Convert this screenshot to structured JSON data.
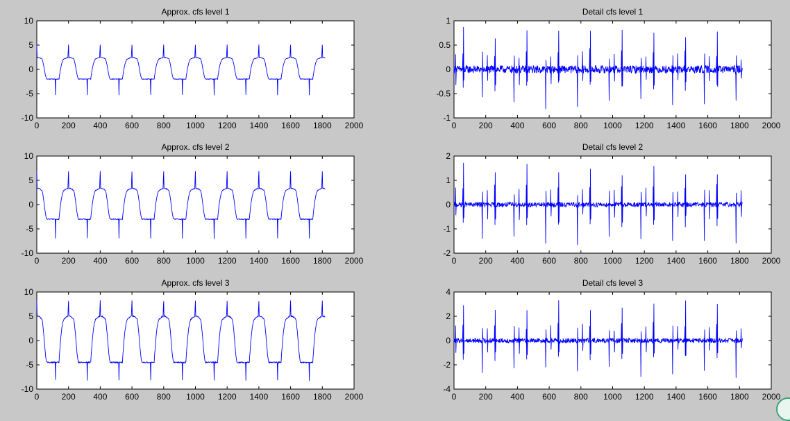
{
  "figure": {
    "background": "#c8c8c8",
    "line_color": "#0000ff"
  },
  "chart_data": [
    {
      "id": "approx-level-1",
      "type": "line",
      "title": "Approx. cfs level 1",
      "xlim": [
        0,
        2000
      ],
      "ylim": [
        -10,
        10
      ],
      "xticks": [
        0,
        200,
        400,
        600,
        800,
        1000,
        1200,
        1400,
        1600,
        1800,
        2000
      ],
      "yticks": [
        -10,
        -5,
        0,
        5,
        10
      ],
      "series": [
        {
          "kind": "approx",
          "samples": 1820,
          "period_samples": 200,
          "peak": 5.2,
          "trough": -5.3,
          "baseline": -2.0,
          "plateau": 2.2
        }
      ]
    },
    {
      "id": "detail-level-1",
      "type": "line",
      "title": "Detail cfs level 1",
      "xlim": [
        0,
        2000
      ],
      "ylim": [
        -1,
        1
      ],
      "xticks": [
        0,
        200,
        400,
        600,
        800,
        1000,
        1200,
        1400,
        1600,
        1800,
        2000
      ],
      "yticks": [
        -1,
        -0.5,
        0,
        0.5,
        1
      ],
      "series": [
        {
          "kind": "detail",
          "samples": 1820,
          "spike_positive": 0.85,
          "spike_negative": -0.8,
          "noise": 0.08
        }
      ]
    },
    {
      "id": "approx-level-2",
      "type": "line",
      "title": "Approx. cfs level 2",
      "xlim": [
        0,
        2000
      ],
      "ylim": [
        -10,
        10
      ],
      "xticks": [
        0,
        200,
        400,
        600,
        800,
        1000,
        1200,
        1400,
        1600,
        1800,
        2000
      ],
      "yticks": [
        -10,
        -5,
        0,
        5,
        10
      ],
      "series": [
        {
          "kind": "approx",
          "samples": 1820,
          "period_samples": 200,
          "peak": 7.0,
          "trough": -7.0,
          "baseline": -3.0,
          "plateau": 3.0
        }
      ]
    },
    {
      "id": "detail-level-2",
      "type": "line",
      "title": "Detail cfs level 2",
      "xlim": [
        0,
        2000
      ],
      "ylim": [
        -2,
        2
      ],
      "xticks": [
        0,
        200,
        400,
        600,
        800,
        1000,
        1200,
        1400,
        1600,
        1800,
        2000
      ],
      "yticks": [
        -2,
        -1,
        0,
        1,
        2
      ],
      "series": [
        {
          "kind": "detail",
          "samples": 1820,
          "spike_positive": 1.7,
          "spike_negative": -1.7,
          "noise": 0.1
        }
      ]
    },
    {
      "id": "approx-level-3",
      "type": "line",
      "title": "Approx. cfs level 3",
      "xlim": [
        0,
        2000
      ],
      "ylim": [
        -10,
        10
      ],
      "xticks": [
        0,
        200,
        400,
        600,
        800,
        1000,
        1200,
        1400,
        1600,
        1800,
        2000
      ],
      "yticks": [
        -10,
        -5,
        0,
        5,
        10
      ],
      "series": [
        {
          "kind": "approx",
          "samples": 1820,
          "period_samples": 200,
          "peak": 8.3,
          "trough": -8.2,
          "baseline": -4.5,
          "plateau": 4.5
        }
      ]
    },
    {
      "id": "detail-level-3",
      "type": "line",
      "title": "Detail cfs level 3",
      "xlim": [
        0,
        2000
      ],
      "ylim": [
        -4,
        4
      ],
      "xticks": [
        0,
        200,
        400,
        600,
        800,
        1000,
        1200,
        1400,
        1600,
        1800,
        2000
      ],
      "yticks": [
        -4,
        -2,
        0,
        2,
        4
      ],
      "series": [
        {
          "kind": "detail",
          "samples": 1820,
          "spike_positive": 3.2,
          "spike_negative": -2.9,
          "noise": 0.2
        }
      ]
    }
  ]
}
